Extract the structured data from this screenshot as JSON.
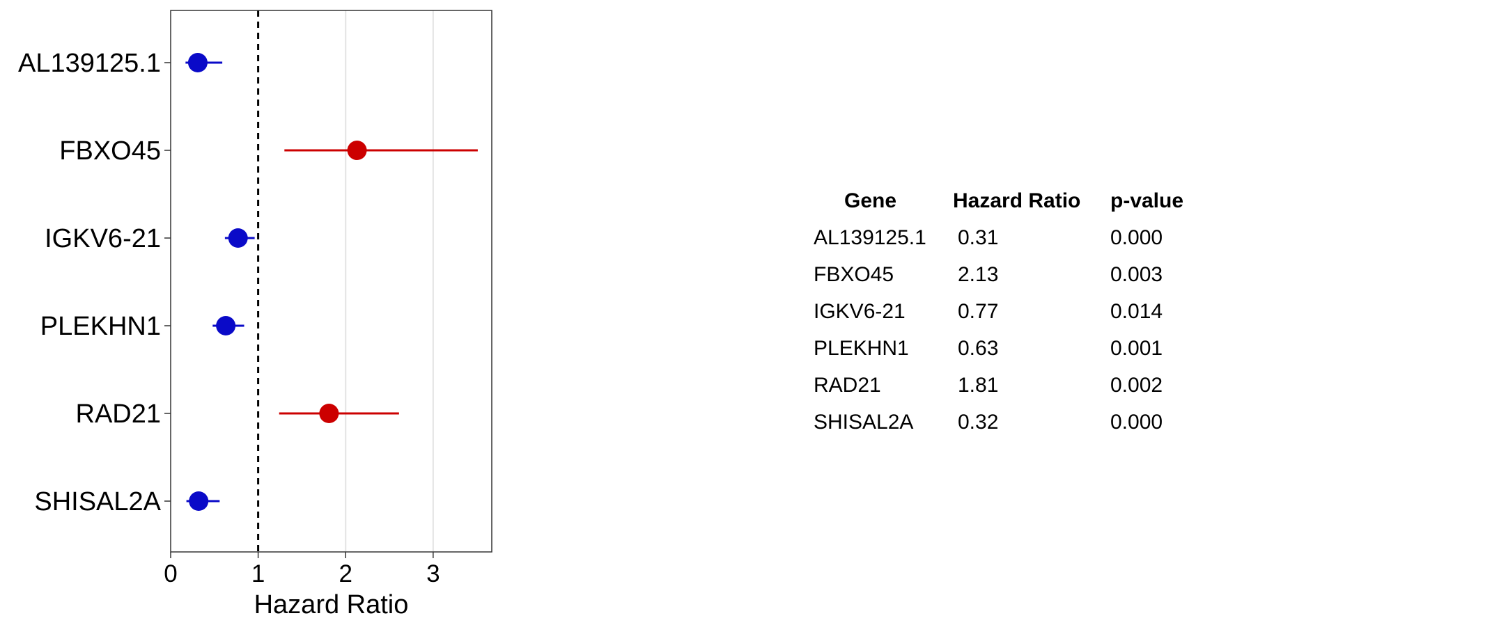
{
  "chart_data": {
    "type": "forest",
    "xlabel": "Hazard Ratio",
    "xlim": [
      0,
      3.67
    ],
    "xticks": [
      0,
      1,
      2,
      3
    ],
    "reference_line": 1,
    "categories": [
      "AL139125.1",
      "FBXO45",
      "IGKV6-21",
      "PLEKHN1",
      "RAD21",
      "SHISAL2A"
    ],
    "hr": [
      0.31,
      2.13,
      0.77,
      0.63,
      1.81,
      0.32
    ],
    "lower": [
      0.17,
      1.3,
      0.62,
      0.48,
      1.24,
      0.18
    ],
    "upper": [
      0.59,
      3.51,
      0.96,
      0.84,
      2.61,
      0.56
    ],
    "colors": {
      "protective": "#0a0ac8",
      "risk": "#cc0000",
      "reference": "#000000",
      "grid": "#e3e3e3"
    },
    "grid": true
  },
  "table": {
    "headers": {
      "gene": "Gene",
      "hr": "Hazard Ratio",
      "p": "p-value"
    },
    "rows": [
      {
        "gene": "AL139125.1",
        "hr": "0.31",
        "p": "0.000"
      },
      {
        "gene": "FBXO45",
        "hr": "2.13",
        "p": "0.003"
      },
      {
        "gene": "IGKV6-21",
        "hr": "0.77",
        "p": "0.014"
      },
      {
        "gene": "PLEKHN1",
        "hr": "0.63",
        "p": "0.001"
      },
      {
        "gene": "RAD21",
        "hr": "1.81",
        "p": "0.002"
      },
      {
        "gene": "SHISAL2A",
        "hr": "0.32",
        "p": "0.000"
      }
    ]
  }
}
